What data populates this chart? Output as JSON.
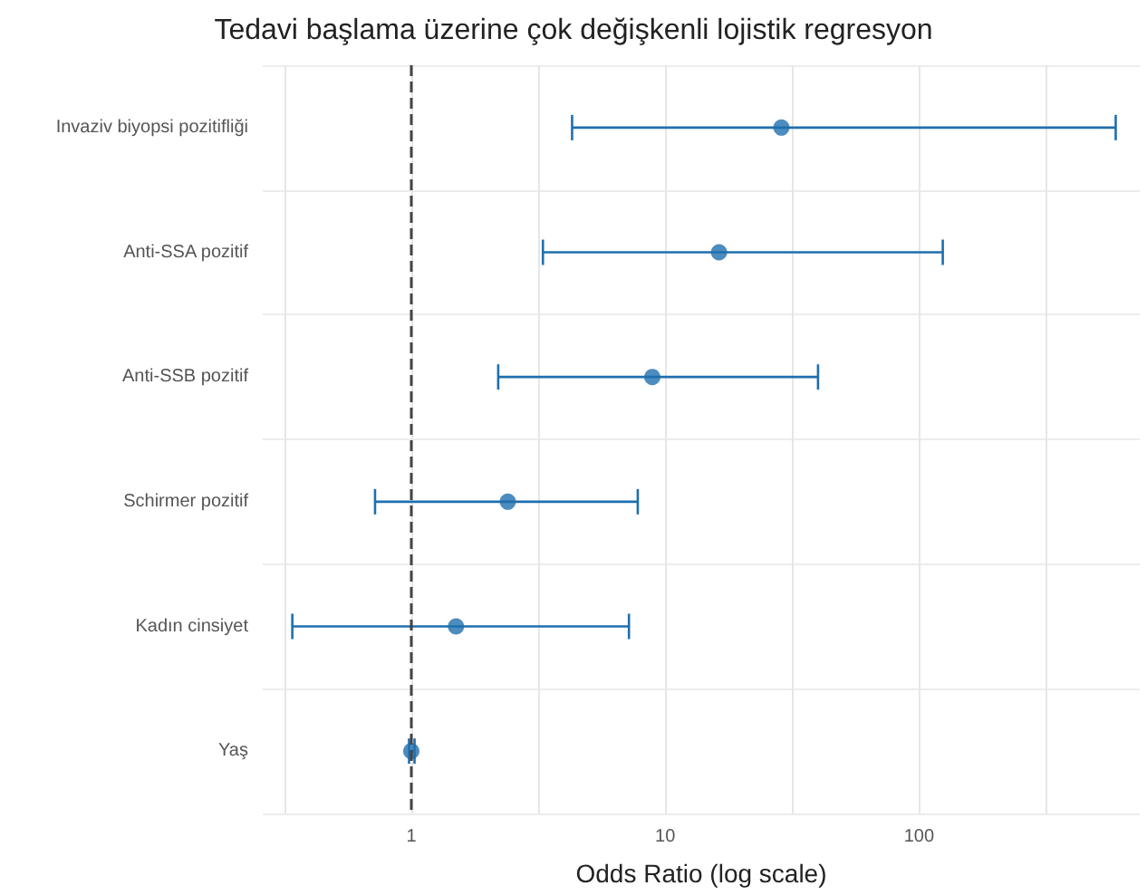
{
  "chart_data": {
    "type": "scatter",
    "orientation": "horizontal",
    "title": "Tedavi başlama üzerine çok değişkenli lojistik regresyon",
    "xlabel": "Odds Ratio (log scale)",
    "categories": [
      "Invaziv biyopsi pozitifliği",
      "Anti-SSA pozitif",
      "Anti-SSB pozitif",
      "Schirmer pozitif",
      "Kadın cinsiyet",
      "Yaş"
    ],
    "values": [
      28.7,
      16.3,
      8.9,
      2.4,
      1.5,
      1.0
    ],
    "errors": [
      [
        4.3,
        595
      ],
      [
        3.3,
        124
      ],
      [
        2.2,
        40
      ],
      [
        0.72,
        7.8
      ],
      [
        0.34,
        7.2
      ],
      [
        0.98,
        1.03
      ]
    ],
    "color": "#1f6fae",
    "log": "x",
    "xlim": [
      0.26,
      740
    ],
    "xticks": [
      {
        "value": 0.316,
        "label": null
      },
      1,
      {
        "value": 3.16,
        "label": null
      },
      10,
      {
        "value": 31.6,
        "label": null
      },
      100,
      {
        "value": 316,
        "label": null
      }
    ],
    "ref_lines": [
      {
        "axis": "x",
        "value": 1,
        "line_style": "dashed",
        "color": "#444444"
      }
    ],
    "grid": true,
    "marker": "circle"
  }
}
